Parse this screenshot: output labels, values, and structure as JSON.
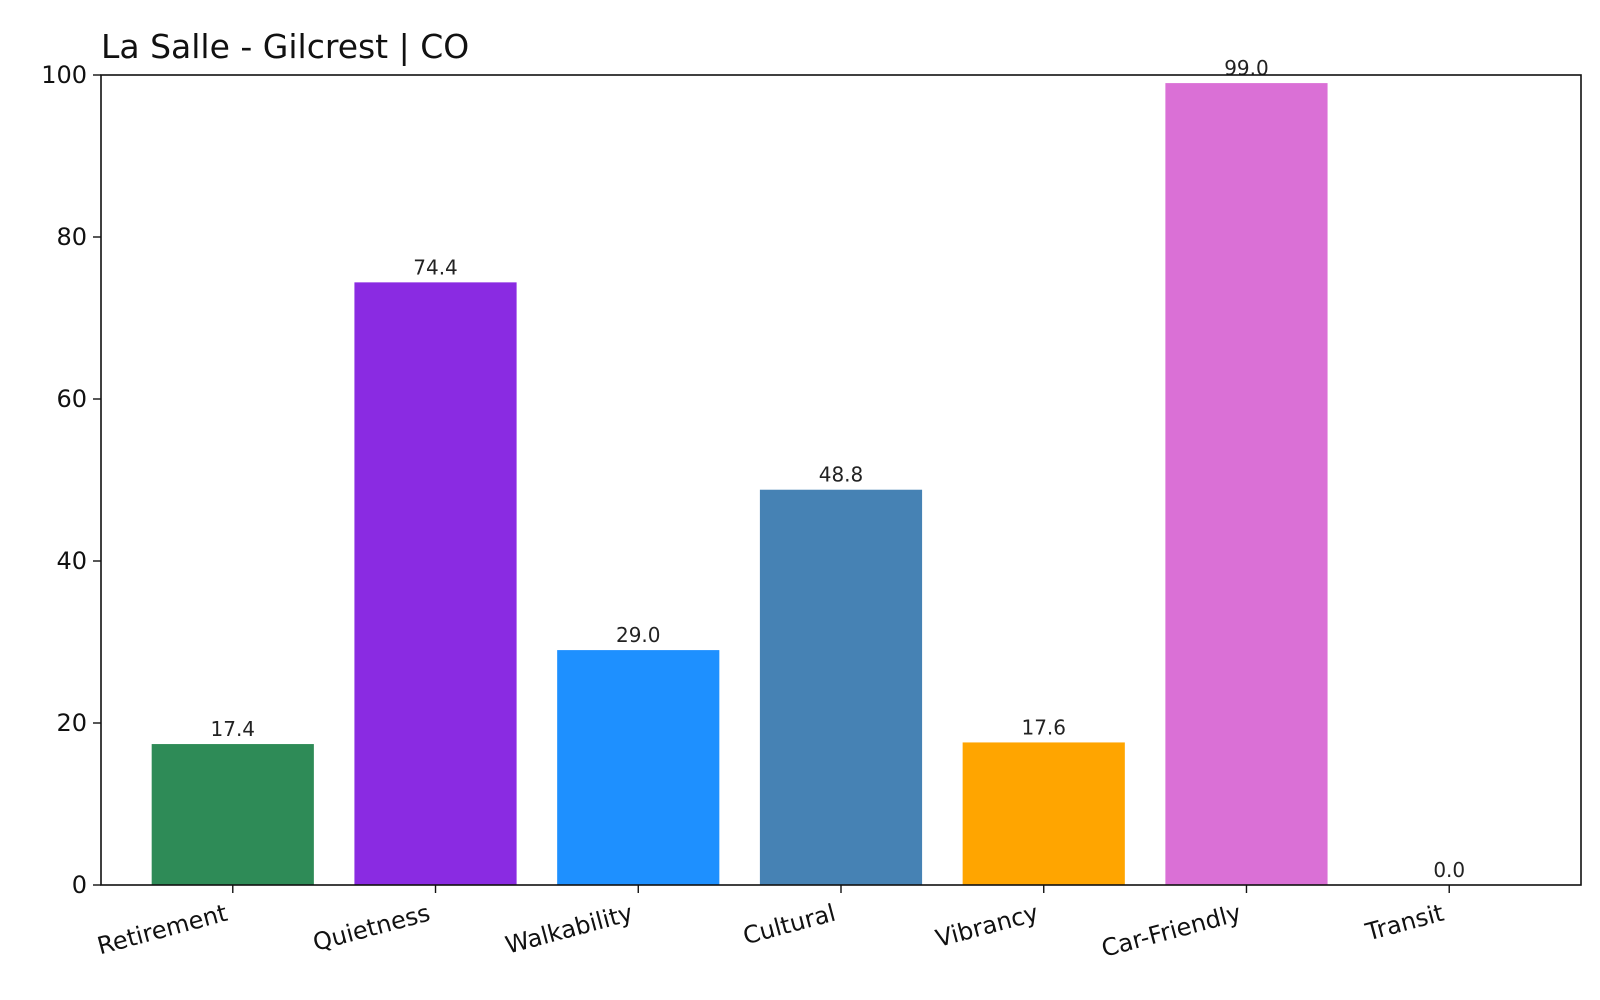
{
  "chart_data": {
    "type": "bar",
    "title": "La Salle - Gilcrest | CO",
    "xlabel": "",
    "ylabel": "",
    "categories": [
      "Retirement",
      "Quietness",
      "Walkability",
      "Cultural",
      "Vibrancy",
      "Car-Friendly",
      "Transit"
    ],
    "values": [
      17.4,
      74.4,
      29.0,
      48.8,
      17.6,
      99.0,
      0.0
    ],
    "value_labels": [
      "17.4",
      "74.4",
      "29.0",
      "48.8",
      "17.6",
      "99.0",
      "0.0"
    ],
    "colors": [
      "#2E8B57",
      "#8A2BE2",
      "#1E90FF",
      "#4682B4",
      "#FFA500",
      "#DA70D6",
      "#808080"
    ],
    "ylim": [
      0,
      100
    ],
    "yticks": [
      0,
      20,
      40,
      60,
      80,
      100
    ],
    "ytick_labels": [
      "0",
      "20",
      "40",
      "60",
      "80",
      "100"
    ],
    "grid": false,
    "legend": "none"
  }
}
